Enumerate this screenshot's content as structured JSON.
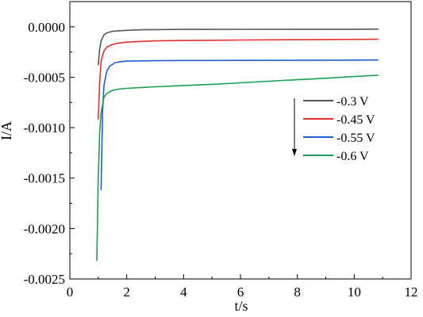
{
  "chart_data": {
    "type": "line",
    "xlabel": "t/s",
    "ylabel": "I/A",
    "xlim": [
      0,
      12
    ],
    "ylim": [
      -0.0025,
      0.00025
    ],
    "x_ticks": [
      0,
      2,
      4,
      6,
      8,
      10,
      12
    ],
    "x_tick_labels": [
      "0",
      "2",
      "4",
      "6",
      "8",
      "10",
      "12"
    ],
    "y_ticks": [
      0.0,
      -0.0005,
      -0.001,
      -0.0015,
      -0.002,
      -0.0025
    ],
    "y_tick_labels": [
      "0.0000",
      "-0.0005",
      "-0.0010",
      "-0.0015",
      "-0.0020",
      "-0.0025"
    ],
    "grid": false,
    "legend_position": "center-right",
    "legend_arrow": "down",
    "series": [
      {
        "name": "-0.3 V",
        "color": "#555555",
        "x": [
          1.0,
          1.05,
          1.1,
          1.2,
          1.3,
          1.5,
          1.7,
          2.0,
          2.5,
          3.0,
          4.0,
          6.0,
          8.0,
          10.0,
          10.85
        ],
        "y": [
          -0.00038,
          -0.00022,
          -0.00014,
          -8e-05,
          -6e-05,
          -4.5e-05,
          -4e-05,
          -3.5e-05,
          -3e-05,
          -2.8e-05,
          -2.6e-05,
          -2.5e-05,
          -2.4e-05,
          -2.4e-05,
          -2.3e-05
        ]
      },
      {
        "name": "-0.45 V",
        "color": "#e03030",
        "x": [
          1.0,
          1.05,
          1.1,
          1.2,
          1.3,
          1.5,
          1.7,
          2.0,
          2.5,
          3.0,
          4.0,
          6.0,
          8.0,
          10.0,
          10.85
        ],
        "y": [
          -0.00092,
          -0.00055,
          -0.00034,
          -0.00024,
          -0.0002,
          -0.000175,
          -0.000162,
          -0.000152,
          -0.000145,
          -0.00014,
          -0.000136,
          -0.000131,
          -0.000128,
          -0.000125,
          -0.000124
        ]
      },
      {
        "name": "-0.55 V",
        "color": "#1e5fd6",
        "x": [
          1.1,
          1.15,
          1.2,
          1.3,
          1.4,
          1.6,
          1.8,
          2.0,
          2.5,
          3.0,
          4.0,
          6.0,
          8.0,
          10.0,
          10.85
        ],
        "y": [
          -0.00162,
          -0.00085,
          -0.00058,
          -0.00044,
          -0.00039,
          -0.000355,
          -0.000345,
          -0.00034,
          -0.000338,
          -0.000336,
          -0.000334,
          -0.000333,
          -0.000332,
          -0.00033,
          -0.000329
        ]
      },
      {
        "name": "-0.6 V",
        "color": "#1aa050",
        "x": [
          0.95,
          1.0,
          1.05,
          1.1,
          1.2,
          1.3,
          1.5,
          1.7,
          2.0,
          2.5,
          3.0,
          4.0,
          5.0,
          6.0,
          7.0,
          8.0,
          9.0,
          10.0,
          10.85
        ],
        "y": [
          -0.00232,
          -0.0015,
          -0.00105,
          -0.00085,
          -0.0007,
          -0.00066,
          -0.00063,
          -0.000618,
          -0.00061,
          -0.000602,
          -0.000595,
          -0.000582,
          -0.00057,
          -0.000555,
          -0.00054,
          -0.000525,
          -0.00051,
          -0.000493,
          -0.00048
        ]
      }
    ]
  }
}
